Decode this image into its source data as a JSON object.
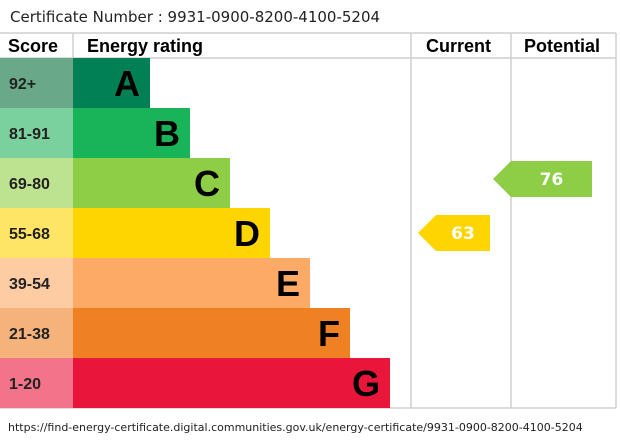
{
  "certificate_label": "Certificate Number : 9931-0900-8200-4100-5204",
  "footer_url": "https://find-energy-certificate.digital.communities.gov.uk/energy-certificate/9931-0900-8200-4100-5204",
  "chart_data": {
    "type": "bar",
    "headers": {
      "score": "Score",
      "rating": "Energy rating",
      "current": "Current",
      "potential": "Potential"
    },
    "bands": [
      {
        "score": "92+",
        "letter": "A",
        "color": "#008054",
        "light": "#6aa88a"
      },
      {
        "score": "81-91",
        "letter": "B",
        "color": "#19b459",
        "light": "#7bd19d"
      },
      {
        "score": "69-80",
        "letter": "C",
        "color": "#8dce46",
        "light": "#bde290"
      },
      {
        "score": "55-68",
        "letter": "D",
        "color": "#ffd500",
        "light": "#ffe566"
      },
      {
        "score": "39-54",
        "letter": "E",
        "color": "#fcaa65",
        "light": "#fdcca3"
      },
      {
        "score": "21-38",
        "letter": "F",
        "color": "#ef8023",
        "light": "#f5b37b"
      },
      {
        "score": "1-20",
        "letter": "G",
        "color": "#e9153b",
        "light": "#f2738a"
      }
    ],
    "current": {
      "value": 63,
      "band": "D",
      "color": "#ffd500"
    },
    "potential": {
      "value": 76,
      "band": "C",
      "color": "#8dce46"
    }
  }
}
